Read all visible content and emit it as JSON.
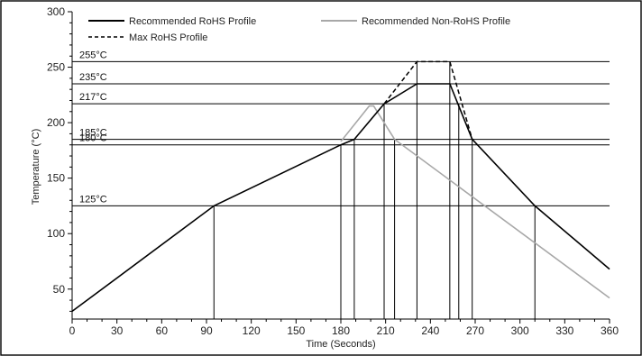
{
  "chart_data": {
    "type": "line",
    "xlabel": "Time (Seconds)",
    "ylabel": "Temperature (°C)",
    "xlim": [
      0,
      360
    ],
    "ylim": [
      23,
      300
    ],
    "x_ticks": [
      0,
      30,
      60,
      90,
      120,
      150,
      180,
      210,
      240,
      270,
      300,
      330,
      360
    ],
    "y_ticks": [
      50,
      100,
      150,
      200,
      250,
      300
    ],
    "reference_lines": [
      {
        "y": 255,
        "label": "255°C"
      },
      {
        "y": 235,
        "label": "235°C"
      },
      {
        "y": 217,
        "label": "217°C"
      },
      {
        "y": 185,
        "label": "185°C"
      },
      {
        "y": 180,
        "label": "180°C"
      },
      {
        "y": 125,
        "label": "125°C"
      }
    ],
    "vertical_markers": [
      {
        "x": 95,
        "y_top": 125
      },
      {
        "x": 180,
        "y_top": 180
      },
      {
        "x": 189,
        "y_top": 185
      },
      {
        "x": 209,
        "y_top": 217
      },
      {
        "x": 216,
        "y_top": 185
      },
      {
        "x": 231,
        "y_top": 255
      },
      {
        "x": 253,
        "y_top": 255
      },
      {
        "x": 259,
        "y_top": 217
      },
      {
        "x": 268,
        "y_top": 185
      },
      {
        "x": 310,
        "y_top": 125
      }
    ],
    "series": [
      {
        "name": "Recommended RoHS Profile",
        "color": "#000000",
        "style": "solid",
        "x": [
          0,
          95,
          180,
          189,
          209,
          231,
          253,
          268,
          310,
          360
        ],
        "y": [
          30,
          125,
          180,
          185,
          217,
          235,
          235,
          185,
          125,
          68
        ]
      },
      {
        "name": "Recommended Non-RoHS Profile",
        "color": "#a8a8a8",
        "style": "solid",
        "x": [
          180,
          199,
          202,
          216,
          360
        ],
        "y": [
          183,
          215,
          215,
          185,
          42
        ]
      },
      {
        "name": "Max RoHS Profile",
        "color": "#000000",
        "style": "dashed",
        "x": [
          209,
          231,
          253,
          268
        ],
        "y": [
          217,
          255,
          255,
          185
        ]
      }
    ],
    "legend": "top"
  }
}
